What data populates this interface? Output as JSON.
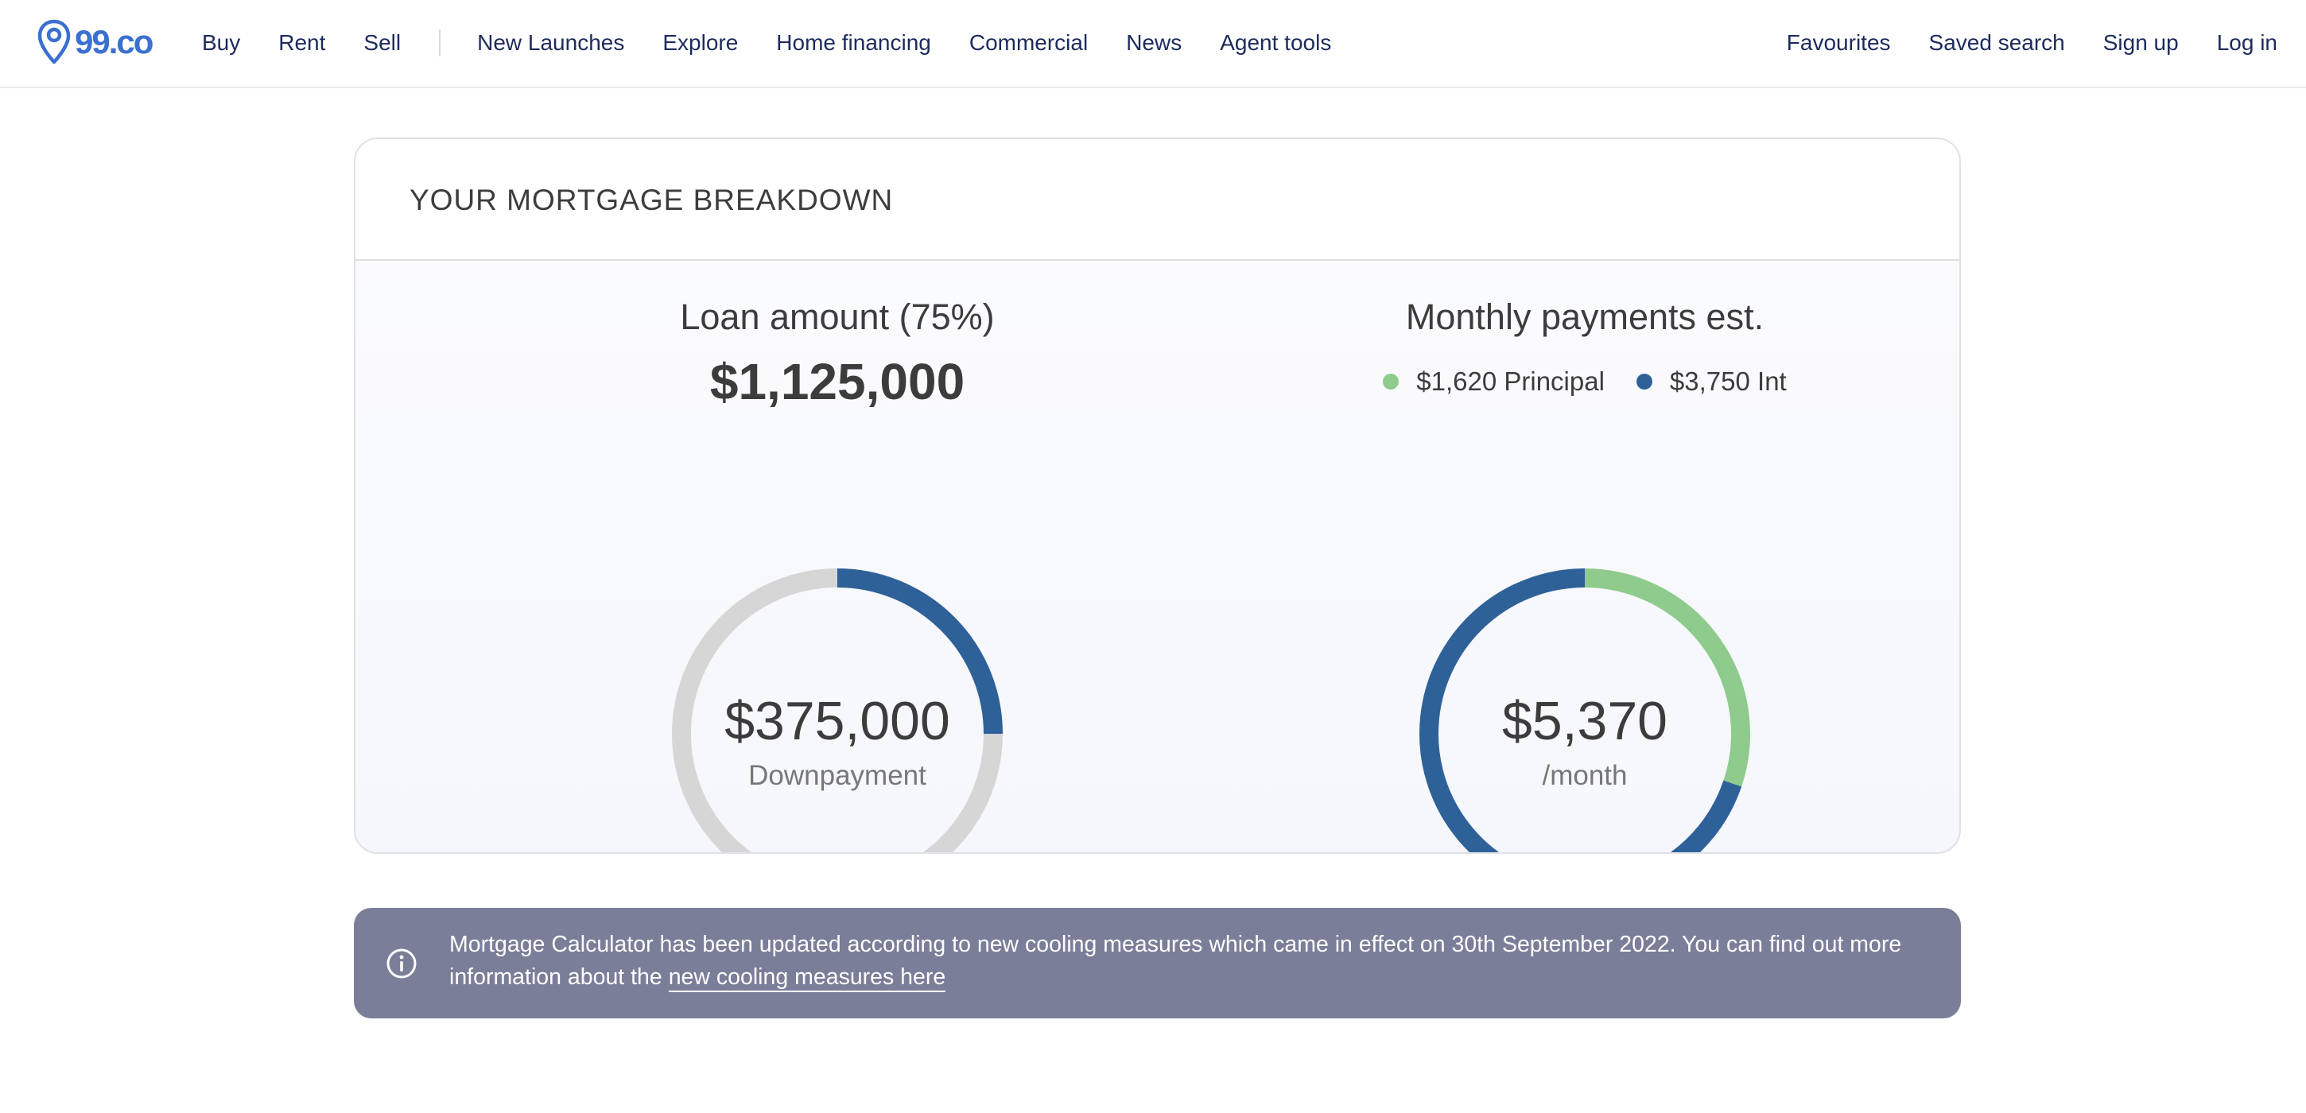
{
  "header": {
    "logo_text": "99.co",
    "nav_left": [
      "Buy",
      "Rent",
      "Sell"
    ],
    "nav_main": [
      "New Launches",
      "Explore",
      "Home financing",
      "Commercial",
      "News",
      "Agent tools"
    ],
    "nav_right": [
      "Favourites",
      "Saved search",
      "Sign up",
      "Log in"
    ]
  },
  "card": {
    "title": "YOUR MORTGAGE BREAKDOWN",
    "loan": {
      "heading": "Loan amount (75%)",
      "amount": "$1,125,000",
      "center_value": "$375,000",
      "center_label": "Downpayment",
      "loan_fraction": 0.25
    },
    "monthly": {
      "heading": "Monthly payments est.",
      "principal_label": "$1,620 Principal",
      "interest_label": "$3,750 Int",
      "center_value": "$5,370",
      "center_label": "/month",
      "principal_value": 1620,
      "interest_value": 3750
    }
  },
  "notice": {
    "text": "Mortgage Calculator has been updated according to new cooling measures which came in effect on 30th September 2022. You can find out more information about the ",
    "link_text": "new cooling measures here"
  },
  "colors": {
    "brand": "#3b6fd0",
    "nav_text": "#1d2b5c",
    "donut_blue": "#2f6199",
    "donut_green": "#8ecb8c",
    "donut_gray": "#d6d6d6",
    "notice_bg": "#7a7e98"
  },
  "icons": {
    "logo": "map-pin-icon",
    "notice": "info-circle-icon"
  }
}
